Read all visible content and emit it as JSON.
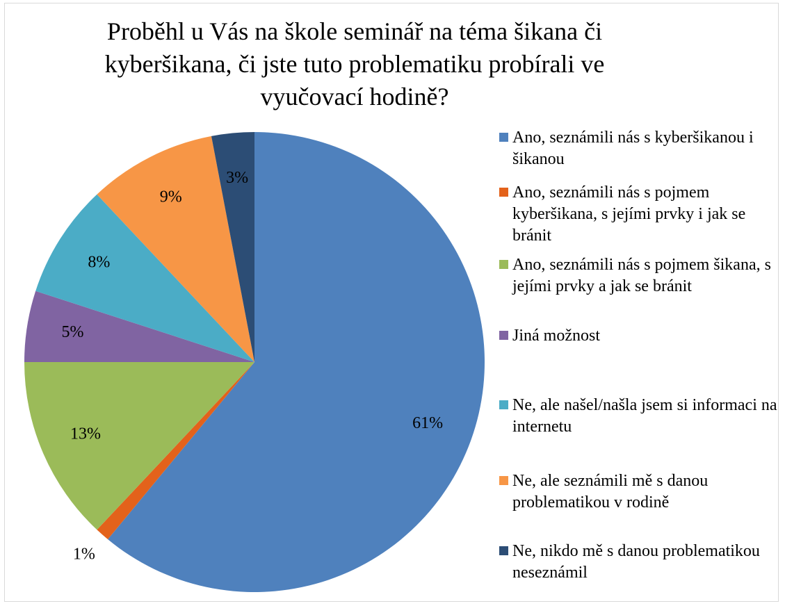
{
  "chart_data": {
    "type": "pie",
    "title": "Proběhl u Vás na škole seminář na téma šikana či kyberšikana, či jste tuto problematiku probírali ve vyučovací hodině?",
    "categories": [
      "Ano, seznámili nás s kyberšikanou i šikanou",
      "Ano, seznámili nás s pojmem kyberšikana, s jejími prvky i jak se bránit",
      "Ano, seznámili nás s pojmem šikana, s jejími prvky a jak se bránit",
      "Jiná možnost",
      "Ne, ale našel/našla jsem si informaci na internetu",
      "Ne, ale seznámili mě s danou problematikou v rodině",
      "Ne, nikdo mě s danou problematikou neseznámil"
    ],
    "values": [
      61,
      1,
      13,
      5,
      8,
      9,
      3
    ],
    "value_labels": [
      "61%",
      "1%",
      "13%",
      "5%",
      "8%",
      "9%",
      "3%"
    ],
    "colors": [
      "#4f81bd",
      "#e3621b",
      "#9bbb59",
      "#8064a2",
      "#4bacc6",
      "#f79646",
      "#2c4d75"
    ],
    "legend": "right"
  }
}
